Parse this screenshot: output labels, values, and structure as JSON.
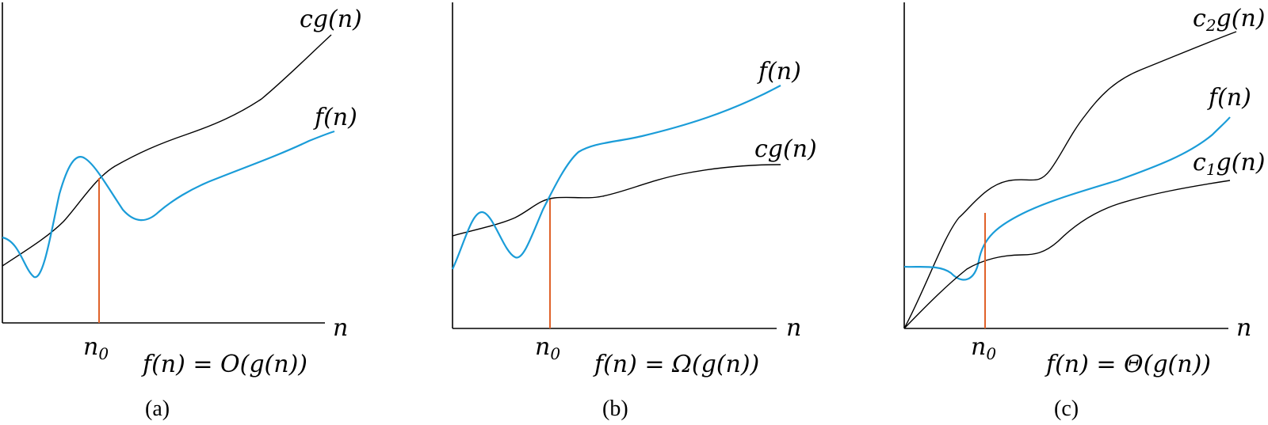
{
  "colors": {
    "f_curve": "#1a9cd8",
    "n0_line": "#e0622a",
    "g_curve": "#000000"
  },
  "panels": [
    {
      "caption": "(a)",
      "formula": "f(n) = O(g(n))",
      "upper_label": "cg(n)",
      "lower_label": "f(n)",
      "axis_label": "n",
      "n0_label": "n0"
    },
    {
      "caption": "(b)",
      "formula": "f(n) = Ω(g(n))",
      "upper_label": "f(n)",
      "lower_label": "cg(n)",
      "axis_label": "n",
      "n0_label": "n0"
    },
    {
      "caption": "(c)",
      "formula": "f(n) = Θ(g(n))",
      "upper_label": "c2g(n)",
      "middle_label": "f(n)",
      "lower_label": "c1g(n)",
      "axis_label": "n",
      "n0_label": "n0"
    }
  ]
}
